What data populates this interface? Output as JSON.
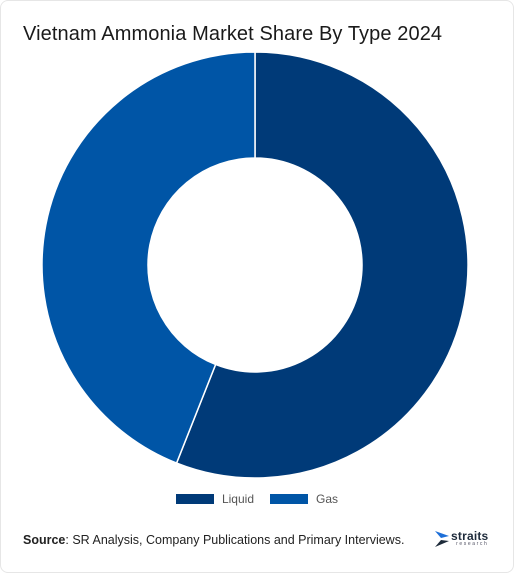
{
  "page": {
    "title": "Vietnam Ammonia Market Share By Type 2024",
    "source_label": "Source",
    "source_text": ": SR Analysis, Company Publications and Primary Interviews.",
    "logo": {
      "word": "straits",
      "sub": "research"
    }
  },
  "chart_data": {
    "type": "pie",
    "variant": "donut",
    "title": "Vietnam Ammonia Market Share By Type 2024",
    "categories": [
      "Liquid",
      "Gas"
    ],
    "values": [
      56,
      44
    ],
    "colors": [
      "#003a78",
      "#0055a6"
    ],
    "legend_position": "bottom"
  }
}
